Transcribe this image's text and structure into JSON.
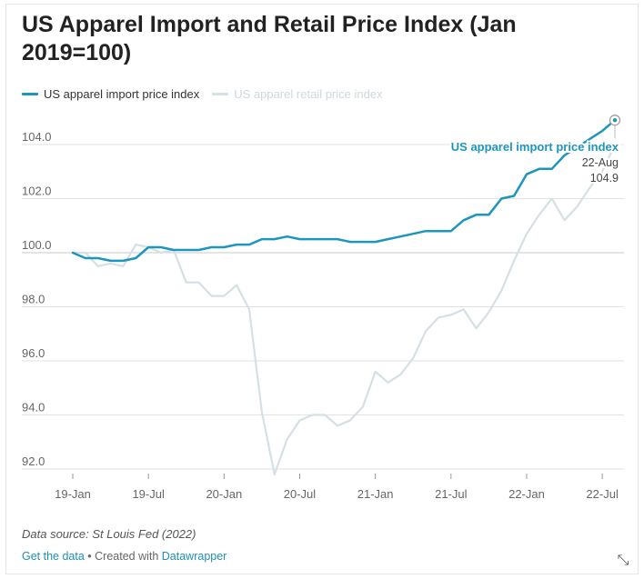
{
  "chart_data": {
    "type": "line",
    "title": "US Apparel Import and Retail Price Index (Jan 2019=100)",
    "xlabel": "",
    "ylabel": "",
    "x_ticks": [
      "19-Jan",
      "19-Jul",
      "20-Jan",
      "20-Jul",
      "21-Jan",
      "21-Jul",
      "22-Jan",
      "22-Jul"
    ],
    "y_ticks": [
      "104.0",
      "102.0",
      "100.0",
      "98.0",
      "96.0",
      "94.0",
      "92.0"
    ],
    "ylim": [
      92,
      104.9
    ],
    "x_range": [
      "2019-01",
      "2022-08"
    ],
    "grid": true,
    "legend_position": "top-left",
    "series": [
      {
        "name": "US apparel import price index",
        "color": "#1d96bd",
        "values": [
          [
            "2019-01",
            100.0
          ],
          [
            "2019-02",
            99.8
          ],
          [
            "2019-03",
            99.8
          ],
          [
            "2019-04",
            99.7
          ],
          [
            "2019-05",
            99.7
          ],
          [
            "2019-06",
            99.8
          ],
          [
            "2019-07",
            100.2
          ],
          [
            "2019-08",
            100.2
          ],
          [
            "2019-09",
            100.1
          ],
          [
            "2019-10",
            100.1
          ],
          [
            "2019-11",
            100.1
          ],
          [
            "2019-12",
            100.2
          ],
          [
            "2020-01",
            100.2
          ],
          [
            "2020-02",
            100.3
          ],
          [
            "2020-03",
            100.3
          ],
          [
            "2020-04",
            100.5
          ],
          [
            "2020-05",
            100.5
          ],
          [
            "2020-06",
            100.6
          ],
          [
            "2020-07",
            100.5
          ],
          [
            "2020-08",
            100.5
          ],
          [
            "2020-09",
            100.5
          ],
          [
            "2020-10",
            100.5
          ],
          [
            "2020-11",
            100.4
          ],
          [
            "2020-12",
            100.4
          ],
          [
            "2021-01",
            100.4
          ],
          [
            "2021-02",
            100.5
          ],
          [
            "2021-03",
            100.6
          ],
          [
            "2021-04",
            100.7
          ],
          [
            "2021-05",
            100.8
          ],
          [
            "2021-06",
            100.8
          ],
          [
            "2021-07",
            100.8
          ],
          [
            "2021-08",
            101.2
          ],
          [
            "2021-09",
            101.4
          ],
          [
            "2021-10",
            101.4
          ],
          [
            "2021-11",
            102.0
          ],
          [
            "2021-12",
            102.1
          ],
          [
            "2022-01",
            102.9
          ],
          [
            "2022-02",
            103.1
          ],
          [
            "2022-03",
            103.1
          ],
          [
            "2022-04",
            103.6
          ],
          [
            "2022-05",
            103.9
          ],
          [
            "2022-06",
            104.2
          ],
          [
            "2022-07",
            104.5
          ],
          [
            "2022-08",
            104.9
          ]
        ]
      },
      {
        "name": "US apparel retail price index",
        "color": "#d4e0e4",
        "values": [
          [
            "2019-01",
            100.0
          ],
          [
            "2019-02",
            100.0
          ],
          [
            "2019-03",
            99.5
          ],
          [
            "2019-04",
            99.6
          ],
          [
            "2019-05",
            99.5
          ],
          [
            "2019-06",
            100.3
          ],
          [
            "2019-07",
            100.2
          ],
          [
            "2019-08",
            100.0
          ],
          [
            "2019-09",
            100.1
          ],
          [
            "2019-10",
            98.9
          ],
          [
            "2019-11",
            98.9
          ],
          [
            "2019-12",
            98.4
          ],
          [
            "2020-01",
            98.4
          ],
          [
            "2020-02",
            98.8
          ],
          [
            "2020-03",
            97.9
          ],
          [
            "2020-04",
            94.1
          ],
          [
            "2020-05",
            91.8
          ],
          [
            "2020-06",
            93.1
          ],
          [
            "2020-07",
            93.8
          ],
          [
            "2020-08",
            94.0
          ],
          [
            "2020-09",
            94.0
          ],
          [
            "2020-10",
            93.6
          ],
          [
            "2020-11",
            93.8
          ],
          [
            "2020-12",
            94.3
          ],
          [
            "2021-01",
            95.6
          ],
          [
            "2021-02",
            95.2
          ],
          [
            "2021-03",
            95.5
          ],
          [
            "2021-04",
            96.1
          ],
          [
            "2021-05",
            97.1
          ],
          [
            "2021-06",
            97.6
          ],
          [
            "2021-07",
            97.7
          ],
          [
            "2021-08",
            97.9
          ],
          [
            "2021-09",
            97.2
          ],
          [
            "2021-10",
            97.8
          ],
          [
            "2021-11",
            98.6
          ],
          [
            "2021-12",
            99.7
          ],
          [
            "2022-01",
            100.7
          ],
          [
            "2022-02",
            101.4
          ],
          [
            "2022-03",
            102.0
          ],
          [
            "2022-04",
            101.2
          ],
          [
            "2022-05",
            101.7
          ],
          [
            "2022-06",
            102.4
          ],
          [
            "2022-07",
            103.0
          ],
          [
            "2022-08",
            104.0
          ]
        ]
      }
    ],
    "annotation": {
      "series_label": "US apparel import price index",
      "date_label": "22-Aug",
      "value_label": "104.9",
      "x": "2022-08",
      "y": 104.9
    }
  },
  "footer": {
    "source": "Data source: St Louis Fed (2022)",
    "get_data": "Get the data",
    "separator": " • Created with ",
    "datawrapper": "Datawrapper"
  },
  "icons": {
    "expand": "expand-icon"
  }
}
